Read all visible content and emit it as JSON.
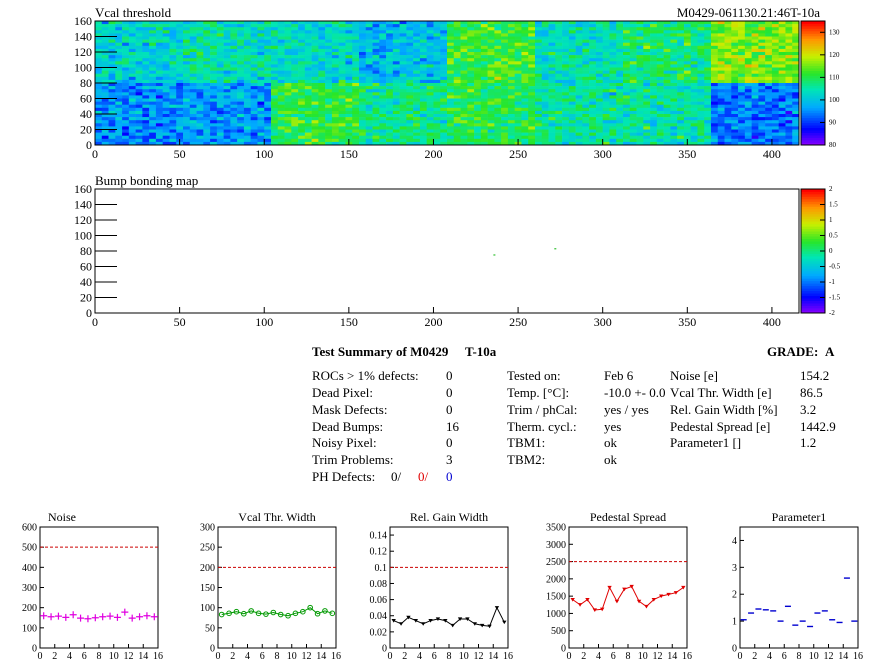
{
  "chart_data": [
    {
      "type": "heatmap",
      "title": "Vcal threshold",
      "module_label": "M0429-061130.21:46T-10a",
      "xlim": [
        0,
        416
      ],
      "ylim": [
        0,
        160
      ],
      "x_ticks": [
        "0",
        "50",
        "100",
        "150",
        "200",
        "250",
        "300",
        "350",
        "400"
      ],
      "y_ticks": [
        "0",
        "20",
        "40",
        "60",
        "80",
        "100",
        "120",
        "140",
        "160"
      ],
      "zlim": [
        80,
        135
      ],
      "z_ticks": [
        "80",
        "90",
        "100",
        "110",
        "120",
        "130"
      ],
      "roc_means_top": [
        102,
        104,
        103,
        99,
        112,
        104,
        108,
        116
      ],
      "roc_means_bottom": [
        95,
        96,
        111,
        107,
        110,
        106,
        105,
        94
      ]
    },
    {
      "type": "heatmap",
      "title": "Bump bonding map",
      "xlim": [
        0,
        416
      ],
      "ylim": [
        0,
        160
      ],
      "x_ticks": [
        "0",
        "50",
        "100",
        "150",
        "200",
        "250",
        "300",
        "350",
        "400"
      ],
      "y_ticks": [
        "0",
        "20",
        "40",
        "60",
        "80",
        "100",
        "120",
        "140",
        "160"
      ],
      "zlim": [
        -2,
        2
      ],
      "z_ticks": [
        "-2",
        "-1.5",
        "-1",
        "-0.5",
        "0",
        "0.5",
        "1",
        "1.5",
        "2"
      ],
      "points": [
        {
          "x": 236,
          "y": 75
        },
        {
          "x": 272,
          "y": 83
        }
      ]
    },
    {
      "type": "scatter",
      "title": "Noise",
      "xlim": [
        0,
        16
      ],
      "ylim": [
        0,
        600
      ],
      "x_ticks": [
        "0",
        "2",
        "4",
        "6",
        "8",
        "10",
        "12",
        "14",
        "16"
      ],
      "y_ticks": [
        "0",
        "100",
        "200",
        "300",
        "400",
        "500",
        "600"
      ],
      "limit": 500,
      "marker": "cross",
      "color": "#e000e0",
      "x": [
        0,
        1,
        2,
        3,
        4,
        5,
        6,
        7,
        8,
        9,
        10,
        11,
        12,
        13,
        14,
        15
      ],
      "y": [
        160,
        155,
        158,
        152,
        165,
        148,
        145,
        150,
        155,
        158,
        152,
        178,
        148,
        155,
        160,
        155
      ]
    },
    {
      "type": "line",
      "title": "Vcal Thr. Width",
      "xlim": [
        0,
        16
      ],
      "ylim": [
        0,
        300
      ],
      "x_ticks": [
        "0",
        "2",
        "4",
        "6",
        "8",
        "10",
        "12",
        "14",
        "16"
      ],
      "y_ticks": [
        "0",
        "50",
        "100",
        "150",
        "200",
        "250",
        "300"
      ],
      "limit": 200,
      "marker": "circle",
      "color": "#009900",
      "x": [
        0,
        1,
        2,
        3,
        4,
        5,
        6,
        7,
        8,
        9,
        10,
        11,
        12,
        13,
        14,
        15
      ],
      "y": [
        83,
        86,
        90,
        85,
        92,
        86,
        84,
        88,
        83,
        80,
        86,
        90,
        100,
        85,
        92,
        86
      ]
    },
    {
      "type": "line",
      "title": "Rel. Gain Width",
      "xlim": [
        0,
        16
      ],
      "ylim": [
        0,
        0.15
      ],
      "x_ticks": [
        "0",
        "2",
        "4",
        "6",
        "8",
        "10",
        "12",
        "14",
        "16"
      ],
      "y_ticks": [
        "0",
        "0.02",
        "0.04",
        "0.06",
        "0.08",
        "0.1",
        "0.12",
        "0.14"
      ],
      "limit": 0.1,
      "marker": "triangle",
      "color": "#000000",
      "x": [
        0,
        1,
        2,
        3,
        4,
        5,
        6,
        7,
        8,
        9,
        10,
        11,
        12,
        13,
        14,
        15
      ],
      "y": [
        0.034,
        0.03,
        0.038,
        0.034,
        0.03,
        0.034,
        0.036,
        0.034,
        0.028,
        0.036,
        0.036,
        0.03,
        0.028,
        0.027,
        0.05,
        0.032
      ]
    },
    {
      "type": "line",
      "title": "Pedestal Spread",
      "xlim": [
        0,
        16
      ],
      "ylim": [
        0,
        3500
      ],
      "x_ticks": [
        "0",
        "2",
        "4",
        "6",
        "8",
        "10",
        "12",
        "14",
        "16"
      ],
      "y_ticks": [
        "0",
        "500",
        "1000",
        "1500",
        "2000",
        "2500",
        "3000",
        "3500"
      ],
      "limit": 2500,
      "marker": "triangle",
      "color": "#e00000",
      "x": [
        0,
        1,
        2,
        3,
        4,
        5,
        6,
        7,
        8,
        9,
        10,
        11,
        12,
        13,
        14,
        15
      ],
      "y": [
        1400,
        1250,
        1400,
        1100,
        1120,
        1750,
        1350,
        1700,
        1780,
        1350,
        1200,
        1400,
        1500,
        1550,
        1600,
        1750
      ]
    },
    {
      "type": "scatter",
      "title": "Parameter1",
      "xlim": [
        0,
        16
      ],
      "ylim": [
        0,
        4.5
      ],
      "x_ticks": [
        "0",
        "2",
        "4",
        "6",
        "8",
        "10",
        "12",
        "14",
        "16"
      ],
      "y_ticks": [
        "0",
        "1",
        "2",
        "3",
        "4"
      ],
      "marker": "cross",
      "color": "#0000d0",
      "x": [
        0,
        1,
        2,
        3,
        4,
        5,
        6,
        7,
        8,
        9,
        10,
        11,
        12,
        13,
        14,
        15
      ],
      "y": [
        1.05,
        1.3,
        1.45,
        1.42,
        1.38,
        1.0,
        1.55,
        0.85,
        1.0,
        0.8,
        1.3,
        1.38,
        1.05,
        0.95,
        2.6,
        1.0
      ]
    }
  ],
  "summary": {
    "title": "Test Summary of M0429",
    "tag": "T-10a",
    "grade_label": "GRADE:",
    "grade": "A",
    "col1": [
      {
        "label": "ROCs > 1% defects:",
        "value": "0"
      },
      {
        "label": "Dead Pixel:",
        "value": "0"
      },
      {
        "label": "Mask Defects:",
        "value": "0"
      },
      {
        "label": "Dead Bumps:",
        "value": "16"
      },
      {
        "label": "Noisy Pixel:",
        "value": "0"
      },
      {
        "label": "Trim Problems:",
        "value": "3"
      }
    ],
    "ph_label": "PH Defects:",
    "ph_values": [
      "0/",
      "0/",
      "0"
    ],
    "col2": [
      {
        "label": "Tested on:",
        "value": "Feb 6"
      },
      {
        "label": "Temp. [°C]:",
        "value": "-10.0 +- 0.0"
      },
      {
        "label": "Trim / phCal:",
        "value": "yes / yes"
      },
      {
        "label": "Therm. cycl.:",
        "value": "yes"
      },
      {
        "label": "TBM1:",
        "value": "ok"
      },
      {
        "label": "TBM2:",
        "value": "ok"
      }
    ],
    "col3": [
      {
        "label": "Noise [e]",
        "value": "154.2"
      },
      {
        "label": "Vcal Thr. Width [e]",
        "value": "86.5"
      },
      {
        "label": "Rel. Gain Width [%]",
        "value": "3.2"
      },
      {
        "label": "Pedestal Spread [e]",
        "value": "1442.9"
      },
      {
        "label": "Parameter1 []",
        "value": "1.2"
      }
    ]
  },
  "colors": {
    "limit_line": "#cc0000",
    "axis": "#000000"
  }
}
